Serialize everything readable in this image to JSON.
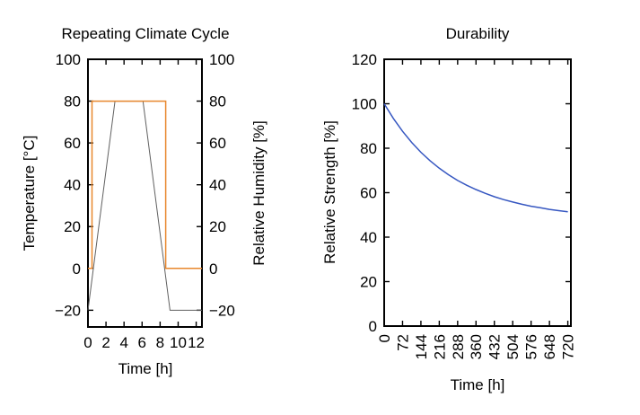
{
  "figure": {
    "background": "#ffffff",
    "text_color": "#000000",
    "axis_color": "#000000"
  },
  "chart_data": [
    {
      "type": "line",
      "title": "Repeating Climate Cycle",
      "xlabel": "Time [h]",
      "ylabel": "Temperature [°C]",
      "y2label": "Relative Humidity [%]",
      "xlim": [
        0,
        12.64
      ],
      "ylim": [
        -28,
        100
      ],
      "x_ticks": [
        0,
        2,
        4,
        6,
        8,
        10,
        12
      ],
      "y_ticks": [
        -20,
        0,
        20,
        40,
        60,
        80,
        100
      ],
      "y2_ticks": [
        -20,
        0,
        20,
        40,
        60,
        80,
        100
      ],
      "grid": false,
      "legend": null,
      "series": [
        {
          "name": "temperature",
          "axis": "left",
          "color": "#606060",
          "width": 1,
          "points": [
            [
              0,
              -20
            ],
            [
              3,
              80
            ],
            [
              6.1,
              80
            ],
            [
              9.1,
              -20
            ],
            [
              12.64,
              -20
            ]
          ]
        },
        {
          "name": "relative-humidity",
          "axis": "right",
          "color": "#e8872d",
          "width": 1.5,
          "points": [
            [
              0,
              0
            ],
            [
              0.45,
              0
            ],
            [
              0.45,
              80
            ],
            [
              8.62,
              80
            ],
            [
              8.62,
              0
            ],
            [
              12.64,
              0
            ]
          ]
        }
      ]
    },
    {
      "type": "line",
      "title": "Durability",
      "xlabel": "Time [h]",
      "ylabel": "Relative Strength [%]",
      "xlim": [
        0,
        732
      ],
      "ylim": [
        0,
        120
      ],
      "x_ticks": [
        0,
        72,
        144,
        216,
        288,
        360,
        432,
        504,
        576,
        648,
        720
      ],
      "x_tick_rotation": 90,
      "y_ticks": [
        0,
        20,
        40,
        60,
        80,
        100,
        120
      ],
      "grid": false,
      "legend": null,
      "series": [
        {
          "name": "relative-strength",
          "color": "#3657c1",
          "width": 1.5,
          "points": [
            [
              0,
              100
            ],
            [
              36,
              93.4
            ],
            [
              72,
              87.6
            ],
            [
              108,
              82.6
            ],
            [
              144,
              78.2
            ],
            [
              180,
              74.4
            ],
            [
              216,
              71.0
            ],
            [
              252,
              68.1
            ],
            [
              288,
              65.5
            ],
            [
              324,
              63.3
            ],
            [
              360,
              61.4
            ],
            [
              396,
              59.7
            ],
            [
              432,
              58.2
            ],
            [
              468,
              56.9
            ],
            [
              504,
              55.8
            ],
            [
              540,
              54.8
            ],
            [
              576,
              53.9
            ],
            [
              612,
              53.2
            ],
            [
              648,
              52.5
            ],
            [
              684,
              51.9
            ],
            [
              720,
              51.4
            ]
          ]
        }
      ]
    }
  ]
}
